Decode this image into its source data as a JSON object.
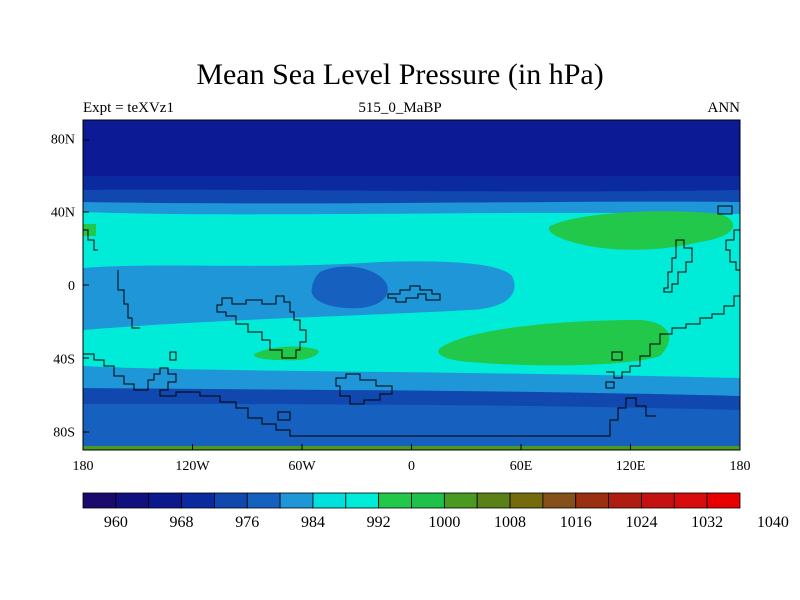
{
  "title": "Mean Sea Level Pressure (in hPa)",
  "subtitle_left": "Expt = teXVz1",
  "subtitle_center": "515_0_MaBP",
  "subtitle_right": "ANN",
  "colors": [
    "#1a0a6e",
    "#10107e",
    "#0a1a8e",
    "#0c2aa0",
    "#1048b0",
    "#1660c0",
    "#1e96d8",
    "#00e0dc",
    "#00ecd8",
    "#22c84a",
    "#1ec24a",
    "#4a9a22",
    "#5a8018",
    "#746a0e",
    "#86501a",
    "#9a3010",
    "#b01c10",
    "#c41210",
    "#d80c0c",
    "#e80000"
  ],
  "chart_data": {
    "type": "map-contour",
    "title": "Mean Sea Level Pressure (in hPa)",
    "variable": "Mean Sea Level Pressure",
    "units": "hPa",
    "experiment": "teXVz1",
    "period": "515_0_MaBP",
    "season": "ANN",
    "x_ticks": [
      "180",
      "120W",
      "60W",
      "0",
      "60E",
      "120E",
      "180"
    ],
    "y_ticks": [
      "80N",
      "40N",
      "0",
      "40S",
      "80S"
    ],
    "xlim": [
      -180,
      180
    ],
    "ylim": [
      -90,
      90
    ],
    "colorbar_levels": [
      956,
      960,
      964,
      968,
      972,
      976,
      980,
      984,
      988,
      992,
      996,
      1000,
      1004,
      1008,
      1012,
      1016,
      1020,
      1024,
      1028,
      1032,
      1036,
      1040
    ],
    "colorbar_labels": [
      "960",
      "968",
      "976",
      "984",
      "992",
      "1000",
      "1008",
      "1016",
      "1024",
      "1032",
      "1040"
    ]
  }
}
